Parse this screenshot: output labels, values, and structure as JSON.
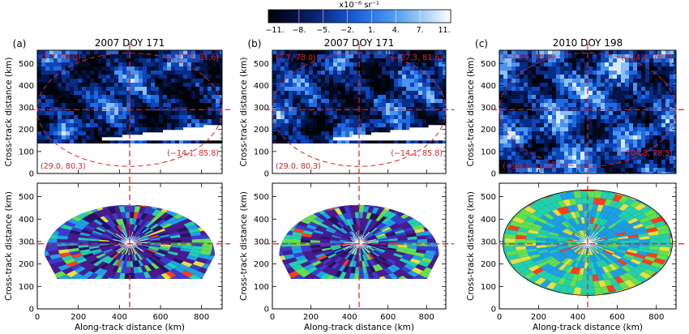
{
  "colorbar": {
    "unit": "x10⁻⁶ sr⁻¹",
    "ticks": [
      "−11.",
      "−8.",
      "−5.",
      "−2.",
      "1.",
      "4.",
      "7.",
      "11."
    ],
    "stops": [
      "#000008",
      "#061040",
      "#0d2a7a",
      "#1450c8",
      "#2c7ae6",
      "#5aa4f0",
      "#a6d0f6",
      "#ffffff"
    ]
  },
  "polar_colors": [
    "#0a0a20",
    "#2a1060",
    "#4a1a90",
    "#3c3cd0",
    "#1ea0e6",
    "#22d0b0",
    "#64e050",
    "#e8e040",
    "#ff3c1e"
  ],
  "chart_data": [
    {
      "type": "heatmap",
      "panel": "(a)",
      "title": "2007 DOY 171",
      "image_kind": "cross-track radiance",
      "xlabel": "",
      "ylabel": "Cross-track distance (km)",
      "xlim": [
        0,
        900
      ],
      "ylim": [
        0,
        560
      ],
      "yticks": [
        0,
        100,
        200,
        300,
        400,
        500
      ],
      "crosshair": {
        "x": 450,
        "y": 290
      },
      "corner_labels": {
        "tl": "(7.7, 78.0)",
        "tr": "(−27.3, 81.6)",
        "bl": "(29.0, 80.3)",
        "br": "(−14.1, 85.8)"
      },
      "image_coverage_y": [
        150,
        560
      ]
    },
    {
      "type": "heatmap",
      "panel": "(b)",
      "title": "2007 DOY 171",
      "image_kind": "cross-track radiance",
      "xlabel": "",
      "ylabel": "Cross-track distance (km)",
      "xlim": [
        0,
        900
      ],
      "ylim": [
        0,
        560
      ],
      "yticks": [
        0,
        100,
        200,
        300,
        400,
        500
      ],
      "crosshair": {
        "x": 450,
        "y": 290
      },
      "corner_labels": {
        "tl": "(7.7, 78.0)",
        "tr": "(−27.3, 81.6)",
        "bl": "(29.0, 80.3)",
        "br": "(−14.1, 85.8)"
      },
      "image_coverage_y": [
        150,
        560
      ]
    },
    {
      "type": "heatmap",
      "panel": "(c)",
      "title": "2010 DOY 198",
      "image_kind": "cross-track radiance",
      "xlabel": "",
      "ylabel": "Cross-track distance (km)",
      "xlim": [
        0,
        900
      ],
      "ylim": [
        0,
        560
      ],
      "yticks": [
        0,
        100,
        200,
        300,
        400,
        500
      ],
      "crosshair": {
        "x": 450,
        "y": 290
      },
      "corner_labels": {
        "tl": "(−13.9, 70.2)",
        "tr": "(−24.4, 76.7)",
        "bl": "(−99.4, 71.4)",
        "br": "(−104.3, 78.5)"
      },
      "image_coverage_y": [
        0,
        560
      ]
    },
    {
      "type": "heatmap",
      "panel": "(a) lower",
      "image_kind": "polar fan",
      "xlabel": "Along-track distance (km)",
      "ylabel": "Cross-track distance (km)",
      "xlim": [
        0,
        900
      ],
      "ylim": [
        0,
        560
      ],
      "xticks": [
        0,
        200,
        400,
        600,
        800
      ],
      "yticks": [
        0,
        100,
        200,
        300,
        400,
        500
      ],
      "crosshair": {
        "x": 450,
        "y": 290
      }
    },
    {
      "type": "heatmap",
      "panel": "(b) lower",
      "image_kind": "polar fan",
      "xlabel": "Along-track distance (km)",
      "ylabel": "Cross-track distance (km)",
      "xlim": [
        0,
        900
      ],
      "ylim": [
        0,
        560
      ],
      "xticks": [
        0,
        200,
        400,
        600,
        800
      ],
      "yticks": [
        0,
        100,
        200,
        300,
        400,
        500
      ],
      "crosshair": {
        "x": 450,
        "y": 290
      }
    },
    {
      "type": "heatmap",
      "panel": "(c) lower",
      "image_kind": "polar fan",
      "xlabel": "Along-track distance (km)",
      "ylabel": "Cross-track distance (km)",
      "xlim": [
        0,
        900
      ],
      "ylim": [
        0,
        560
      ],
      "xticks": [
        0,
        200,
        400,
        600,
        800
      ],
      "yticks": [
        0,
        100,
        200,
        300,
        400,
        500
      ],
      "crosshair": {
        "x": 450,
        "y": 290
      }
    }
  ]
}
